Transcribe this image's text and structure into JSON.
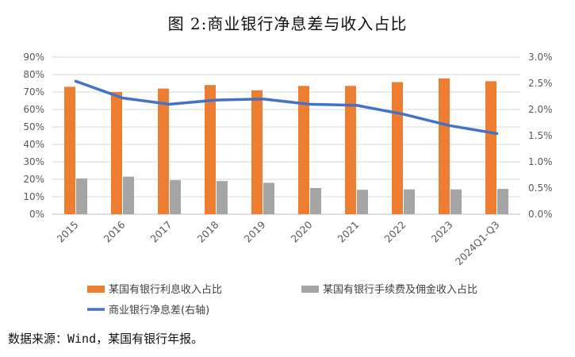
{
  "title": "图 2:商业银行净息差与收入占比",
  "source": "数据来源：Wind，某国有银行年报。",
  "chart_data": {
    "type": "bar",
    "categories": [
      "2015",
      "2016",
      "2017",
      "2018",
      "2019",
      "2020",
      "2021",
      "2022",
      "2023",
      "2024Q1-Q3"
    ],
    "series": [
      {
        "name": "某国有银行利息收入占比",
        "type": "bar",
        "axis": "left",
        "color": "#ED7D31",
        "values": [
          73,
          70,
          72,
          74,
          71,
          73.5,
          73.5,
          75.7,
          77.8,
          76.2
        ]
      },
      {
        "name": "某国有银行手续费及佣金收入占比",
        "type": "bar",
        "axis": "left",
        "color": "#A5A5A5",
        "values": [
          20.5,
          21.5,
          19.5,
          19,
          18,
          15,
          14,
          14.2,
          14.2,
          14.5
        ]
      },
      {
        "name": "商业银行净息差(右轴)",
        "type": "line",
        "axis": "right",
        "color": "#4472C4",
        "values": [
          2.54,
          2.22,
          2.1,
          2.18,
          2.2,
          2.1,
          2.08,
          1.91,
          1.69,
          1.54
        ]
      }
    ],
    "left_axis": {
      "ylim": [
        0,
        90
      ],
      "ticks": [
        "0%",
        "10%",
        "20%",
        "30%",
        "40%",
        "50%",
        "60%",
        "70%",
        "80%",
        "90%"
      ]
    },
    "right_axis": {
      "ylim": [
        0,
        3.0
      ],
      "ticks": [
        "0.0%",
        "0.5%",
        "1.0%",
        "1.5%",
        "2.0%",
        "2.5%",
        "3.0%"
      ]
    },
    "grid": true,
    "legend": "bottom"
  }
}
